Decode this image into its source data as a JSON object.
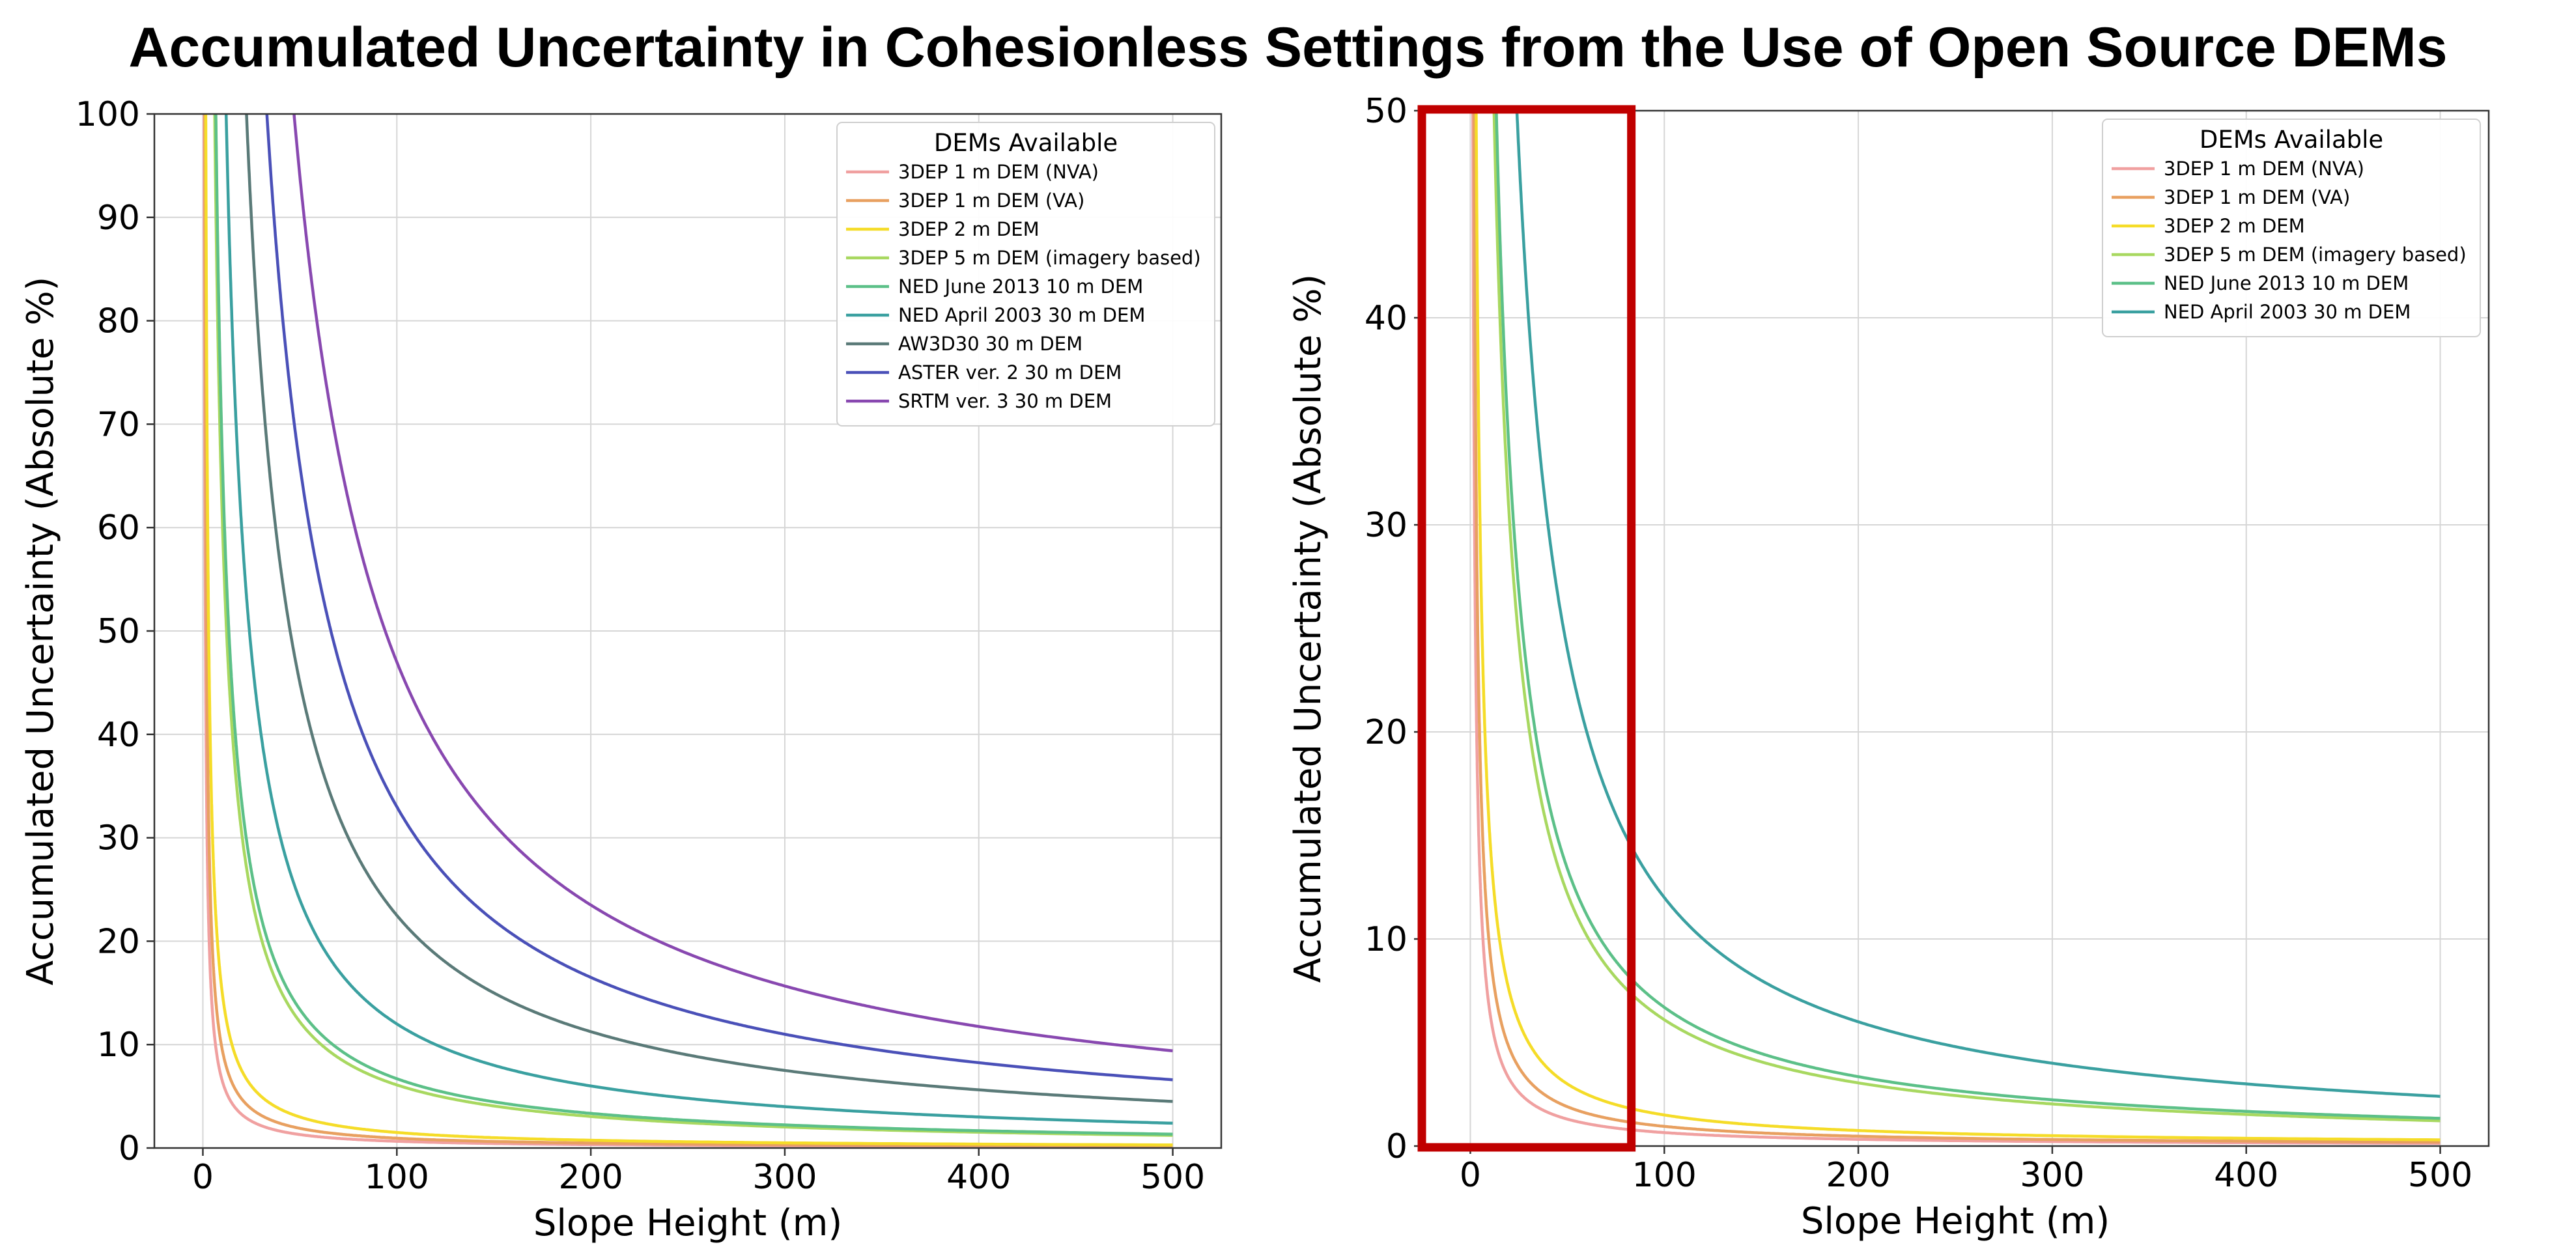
{
  "title": "Accumulated Uncertainty in Cohesionless Settings from the Use of Open Source DEMs",
  "chart_data": [
    {
      "type": "line",
      "xlabel": "Slope Height (m)",
      "ylabel": "Accumulated Uncertainty (Absolute %)",
      "xlim": [
        -25,
        525
      ],
      "ylim": [
        0,
        100
      ],
      "xticks": [
        0,
        100,
        200,
        300,
        400,
        500
      ],
      "yticks": [
        0,
        10,
        20,
        30,
        40,
        50,
        60,
        70,
        80,
        90,
        100
      ],
      "grid": true,
      "legend_title": "DEMs Available",
      "legend_position": "top-right",
      "model": "y = k / x (k = uncertainty at x = 1 m, percent)",
      "series": [
        {
          "name": "3DEP 1 m DEM (NVA)",
          "color": "#f0a0a0",
          "k": 65
        },
        {
          "name": "3DEP 1 m DEM (VA)",
          "color": "#e8a060",
          "k": 95
        },
        {
          "name": "3DEP 2 m DEM",
          "color": "#f5dc28",
          "k": 150
        },
        {
          "name": "3DEP 5 m DEM (imagery based)",
          "color": "#a8d860",
          "k": 610
        },
        {
          "name": "NED June 2013 10 m DEM",
          "color": "#5cc088",
          "k": 670
        },
        {
          "name": "NED April 2003 30 m DEM",
          "color": "#3aa0a0",
          "k": 1200
        },
        {
          "name": "AW3D30 30 m DEM",
          "color": "#5a7a78",
          "k": 2250
        },
        {
          "name": "ASTER ver. 2 30 m DEM",
          "color": "#4a50b8",
          "k": 3300
        },
        {
          "name": "SRTM ver. 3 30 m DEM",
          "color": "#8848b0",
          "k": 4700
        }
      ]
    },
    {
      "type": "line",
      "xlabel": "Slope Height (m)",
      "ylabel": "Accumulated Uncertainty (Absolute %)",
      "xlim": [
        -25,
        525
      ],
      "ylim": [
        0,
        50
      ],
      "xticks": [
        0,
        100,
        200,
        300,
        400,
        500
      ],
      "yticks": [
        0,
        10,
        20,
        30,
        40,
        50
      ],
      "grid": true,
      "legend_title": "DEMs Available",
      "legend_position": "top-right",
      "highlight_x_range": [
        -25,
        83
      ],
      "highlight_color": "#c00000",
      "model": "y = k / x (k = uncertainty at x = 1 m, percent)",
      "series": [
        {
          "name": "3DEP 1 m DEM (NVA)",
          "color": "#f0a0a0",
          "k": 65
        },
        {
          "name": "3DEP 1 m DEM (VA)",
          "color": "#e8a060",
          "k": 95
        },
        {
          "name": "3DEP 2 m DEM",
          "color": "#f5dc28",
          "k": 150
        },
        {
          "name": "3DEP 5 m DEM (imagery based)",
          "color": "#a8d860",
          "k": 610
        },
        {
          "name": "NED June 2013 10 m DEM",
          "color": "#5cc088",
          "k": 670
        },
        {
          "name": "NED April 2003 30 m DEM",
          "color": "#3aa0a0",
          "k": 1200
        }
      ]
    }
  ]
}
